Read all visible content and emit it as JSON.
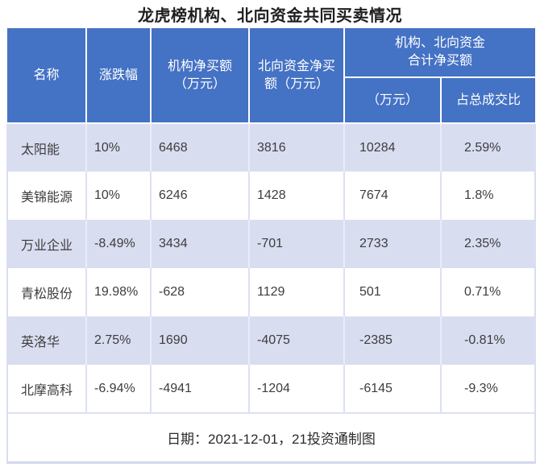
{
  "title": "龙虎榜机构、北向资金共同买卖情况",
  "table": {
    "headers": {
      "name": "名称",
      "change": "涨跌幅",
      "inst_net": "机构净买额\n（万元）",
      "north_net": "北向资金净买\n额（万元）",
      "combined": "机构、北向资金\n合计净买额",
      "combined_amount": "（万元）",
      "combined_ratio": "占总成交比"
    }
  },
  "footer": {
    "note": "日期：2021-12-01，21投资通制图"
  },
  "colors": {
    "header_bg": "#4472C4",
    "header_text": "#FFFFFF",
    "row_alt_bg": "#D9DDF0",
    "row_bg": "#FFFFFF",
    "grid_line": "#DDE1F2",
    "outer_border": "#D9DDF0",
    "bottom_bar": "#D2D8EC",
    "body_text": "#3D3D3D"
  },
  "chart_data": {
    "type": "table",
    "title": "龙虎榜机构、北向资金共同买卖情况",
    "columns": [
      "名称",
      "涨跌幅",
      "机构净买额（万元）",
      "北向资金净买额（万元）",
      "机构、北向资金合计净买额（万元）",
      "机构、北向资金合计净买额占总成交比"
    ],
    "rows": [
      [
        "太阳能",
        "10%",
        6468,
        3816,
        10284,
        "2.59%"
      ],
      [
        "美锦能源",
        "10%",
        6246,
        1428,
        7674,
        "1.8%"
      ],
      [
        "万业企业",
        "-8.49%",
        3434,
        -701,
        2733,
        "2.35%"
      ],
      [
        "青松股份",
        "19.98%",
        -628,
        1129,
        501,
        "0.71%"
      ],
      [
        "英洛华",
        "2.75%",
        1690,
        -4075,
        -2385,
        "-0.81%"
      ],
      [
        "北摩高科",
        "-6.94%",
        -4941,
        -1204,
        -6145,
        "-9.3%"
      ]
    ],
    "footnote": "日期：2021-12-01，21投资通制图"
  }
}
